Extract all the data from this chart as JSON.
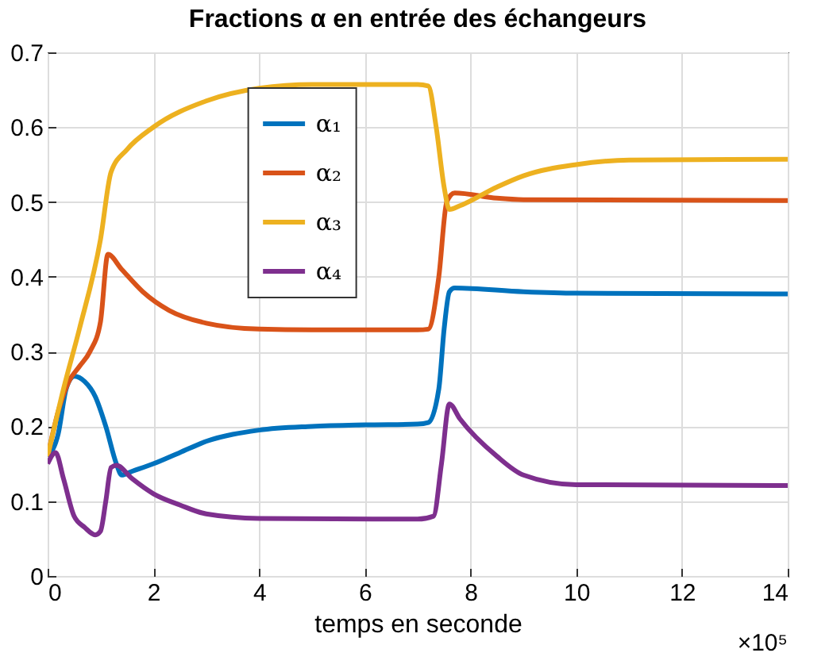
{
  "chart_data": {
    "type": "line",
    "title": "Fractions α en entrée des échangeurs",
    "xlabel": "temps en seconde",
    "annotations": [
      "×10⁵"
    ],
    "xlim": [
      0,
      14
    ],
    "xticks": [
      0,
      2,
      4,
      6,
      8,
      10,
      12,
      14
    ],
    "ylim": [
      0,
      0.7
    ],
    "yticks": [
      0,
      0.1,
      0.2,
      0.3,
      0.4,
      0.5,
      0.6,
      0.7
    ],
    "grid": true,
    "legend": "top",
    "series": [
      {
        "name": "α₁",
        "color": "#0072bd",
        "x": [
          0,
          0.2,
          0.35,
          0.5,
          0.7,
          0.9,
          1.1,
          1.3,
          1.4,
          1.6,
          2,
          2.5,
          3,
          4,
          5,
          6,
          7,
          7.2,
          7.4,
          7.5,
          7.6,
          7.7,
          9,
          10,
          14
        ],
        "values": [
          0.16,
          0.19,
          0.25,
          0.267,
          0.26,
          0.24,
          0.2,
          0.15,
          0.135,
          0.14,
          0.15,
          0.165,
          0.18,
          0.195,
          0.2,
          0.202,
          0.203,
          0.205,
          0.25,
          0.33,
          0.38,
          0.385,
          0.38,
          0.378,
          0.377
        ]
      },
      {
        "name": "α₂",
        "color": "#d95319",
        "x": [
          0,
          0.2,
          0.4,
          0.6,
          0.8,
          1.0,
          1.14,
          1.4,
          1.8,
          2.3,
          3,
          4,
          5,
          7,
          7.2,
          7.4,
          7.55,
          7.7,
          8.5,
          9,
          14
        ],
        "values": [
          0.16,
          0.22,
          0.26,
          0.28,
          0.3,
          0.34,
          0.43,
          0.41,
          0.38,
          0.355,
          0.338,
          0.33,
          0.329,
          0.329,
          0.33,
          0.4,
          0.5,
          0.512,
          0.505,
          0.503,
          0.502
        ]
      },
      {
        "name": "α₃",
        "color": "#edb120",
        "x": [
          0,
          0.3,
          0.6,
          1,
          1.2,
          1.5,
          2,
          3,
          4,
          5,
          7,
          7.2,
          7.35,
          7.5,
          7.6,
          7.8,
          8.5,
          9,
          10,
          11,
          14
        ],
        "values": [
          0.16,
          0.25,
          0.33,
          0.45,
          0.54,
          0.57,
          0.6,
          0.635,
          0.652,
          0.657,
          0.657,
          0.655,
          0.6,
          0.52,
          0.49,
          0.495,
          0.52,
          0.535,
          0.55,
          0.556,
          0.557
        ]
      },
      {
        "name": "α₄",
        "color": "#7e2f8e",
        "x": [
          0,
          0.15,
          0.3,
          0.5,
          0.7,
          0.9,
          1.0,
          1.1,
          1.2,
          1.3,
          1.6,
          2,
          2.5,
          3,
          4,
          7,
          7.3,
          7.45,
          7.6,
          7.8,
          8.5,
          9,
          10,
          14
        ],
        "values": [
          0.15,
          0.165,
          0.13,
          0.08,
          0.065,
          0.055,
          0.06,
          0.1,
          0.145,
          0.148,
          0.13,
          0.11,
          0.095,
          0.083,
          0.077,
          0.076,
          0.08,
          0.15,
          0.23,
          0.21,
          0.16,
          0.135,
          0.122,
          0.121
        ]
      }
    ]
  }
}
